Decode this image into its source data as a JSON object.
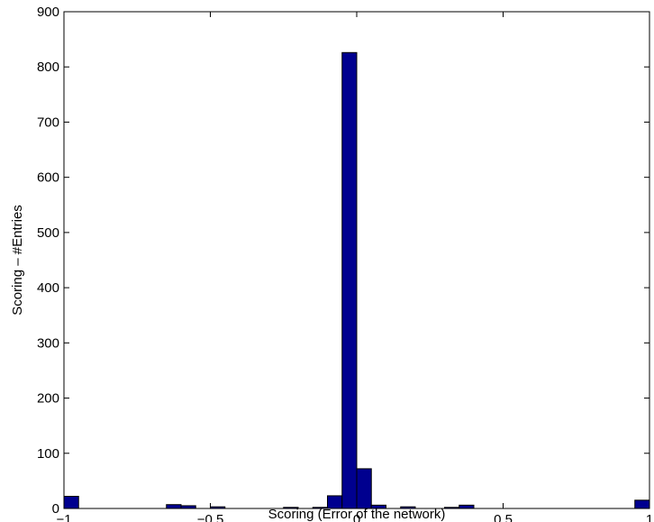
{
  "chart_data": {
    "type": "bar",
    "subtype": "histogram",
    "title": "",
    "xlabel": "Scoring (Error of the network)",
    "ylabel": "Scoring – #Entries",
    "xlim": [
      -1,
      1
    ],
    "ylim": [
      0,
      900
    ],
    "xticks": [
      -1,
      -0.5,
      0,
      0.5,
      1
    ],
    "xtick_labels": [
      "−1",
      "−0.5",
      "0",
      "0.5",
      "1"
    ],
    "yticks": [
      0,
      100,
      200,
      300,
      400,
      500,
      600,
      700,
      800,
      900
    ],
    "ytick_labels": [
      "0",
      "100",
      "200",
      "300",
      "400",
      "500",
      "600",
      "700",
      "800",
      "900"
    ],
    "grid": false,
    "bar_color": "#00008f",
    "bin_width": 0.05,
    "bins": [
      {
        "x": -1.0,
        "value": 22
      },
      {
        "x": -0.95,
        "value": 0
      },
      {
        "x": -0.9,
        "value": 0
      },
      {
        "x": -0.85,
        "value": 0
      },
      {
        "x": -0.8,
        "value": 0
      },
      {
        "x": -0.75,
        "value": 0
      },
      {
        "x": -0.7,
        "value": 0
      },
      {
        "x": -0.65,
        "value": 7
      },
      {
        "x": -0.6,
        "value": 5
      },
      {
        "x": -0.55,
        "value": 0
      },
      {
        "x": -0.5,
        "value": 3
      },
      {
        "x": -0.45,
        "value": 0
      },
      {
        "x": -0.4,
        "value": 0
      },
      {
        "x": -0.35,
        "value": 0
      },
      {
        "x": -0.3,
        "value": 0
      },
      {
        "x": -0.25,
        "value": 2
      },
      {
        "x": -0.2,
        "value": 0
      },
      {
        "x": -0.15,
        "value": 2
      },
      {
        "x": -0.1,
        "value": 23
      },
      {
        "x": -0.05,
        "value": 826
      },
      {
        "x": 0.0,
        "value": 72
      },
      {
        "x": 0.05,
        "value": 6
      },
      {
        "x": 0.1,
        "value": 0
      },
      {
        "x": 0.15,
        "value": 3
      },
      {
        "x": 0.2,
        "value": 0
      },
      {
        "x": 0.25,
        "value": 0
      },
      {
        "x": 0.3,
        "value": 2
      },
      {
        "x": 0.35,
        "value": 6
      },
      {
        "x": 0.4,
        "value": 0
      },
      {
        "x": 0.45,
        "value": 0
      },
      {
        "x": 0.5,
        "value": 0
      },
      {
        "x": 0.55,
        "value": 0
      },
      {
        "x": 0.6,
        "value": 0
      },
      {
        "x": 0.65,
        "value": 0
      },
      {
        "x": 0.7,
        "value": 0
      },
      {
        "x": 0.75,
        "value": 0
      },
      {
        "x": 0.8,
        "value": 0
      },
      {
        "x": 0.85,
        "value": 0
      },
      {
        "x": 0.9,
        "value": 0
      },
      {
        "x": 0.95,
        "value": 15
      }
    ]
  }
}
